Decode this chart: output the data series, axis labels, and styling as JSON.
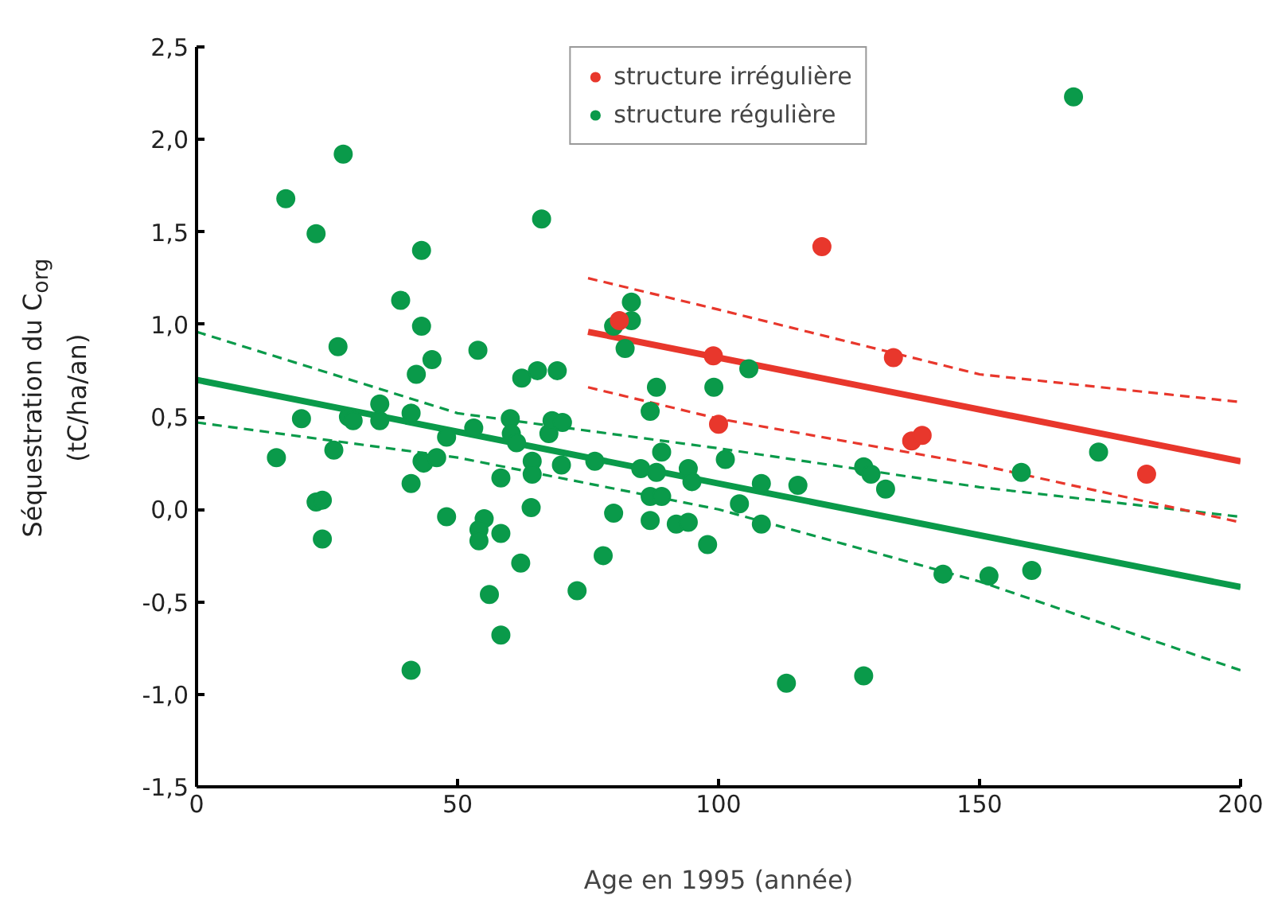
{
  "chart_data": {
    "type": "scatter",
    "xlabel": "Age en 1995 (année)",
    "ylabel": "Séquestration du C$_{org}$\n(tC/ha/an)",
    "xlim": [
      0,
      200
    ],
    "xticks": [
      0,
      50,
      100,
      150,
      200
    ],
    "ylim": [
      -1.5,
      2.5
    ],
    "yticks": [
      {
        "value": -1.5,
        "label": "-1,5"
      },
      {
        "value": -1.0,
        "label": "-1,0"
      },
      {
        "value": -0.5,
        "label": "-0,5"
      },
      {
        "value": 0,
        "label": "0,0"
      },
      {
        "value": 0.5,
        "label": "0,5"
      },
      {
        "value": 1.0,
        "label": "1,0"
      },
      {
        "value": 1.5,
        "label": "1,5"
      },
      {
        "value": 2.0,
        "label": "2,0"
      },
      {
        "value": 2.5,
        "label": "2,5"
      }
    ],
    "grid": false,
    "legend": "top",
    "series": [
      {
        "name": "structure irrégulière",
        "color": "#e8372c",
        "marker": "circle",
        "x": [
          81,
          99,
          100,
          119.8,
          133.5,
          137,
          139,
          182
        ],
        "values": [
          1.02,
          0.83,
          0.46,
          1.42,
          0.82,
          0.37,
          0.4,
          0.19
        ]
      },
      {
        "name": "structure régulière",
        "color": "#0a9a4a",
        "marker": "circle",
        "x": [
          28.1,
          17.1,
          22.9,
          43.1,
          66.1,
          39.1,
          43.1,
          27.1,
          45.1,
          53.9,
          42.1,
          62.3,
          65.3,
          35.1,
          20.1,
          29.1,
          30,
          35.1,
          41.1,
          15.3,
          26.3,
          47.9,
          53.1,
          60.1,
          60.3,
          61.3,
          43.2,
          43.5,
          46,
          64.3,
          64.3,
          41.1,
          58.3,
          64.1,
          47.9,
          55.1,
          54.1,
          54.1,
          58.3,
          22.9,
          24.1,
          24.1,
          62.1,
          56.1,
          58.3,
          41.1,
          69.1,
          67.5,
          68.1,
          70.1,
          69.9,
          76.3,
          79.9,
          77.9,
          72.9,
          79.9,
          83.3,
          83.3,
          82.1,
          88.1,
          86.9,
          89.1,
          85.1,
          88.1,
          94.2,
          94.9,
          86.9,
          89.1,
          86.9,
          91.9,
          94.2,
          97.9,
          99.1,
          101.3,
          104,
          105.8,
          108.2,
          108.2,
          115.2,
          127.8,
          129.2,
          132,
          113,
          127.8,
          168,
          172.8,
          158,
          143,
          151.8,
          160
        ],
        "values": [
          1.92,
          1.68,
          1.49,
          1.4,
          1.57,
          1.13,
          0.99,
          0.88,
          0.81,
          0.86,
          0.73,
          0.71,
          0.75,
          0.57,
          0.49,
          0.5,
          0.48,
          0.48,
          0.52,
          0.28,
          0.32,
          0.39,
          0.44,
          0.49,
          0.41,
          0.36,
          0.26,
          0.25,
          0.28,
          0.26,
          0.19,
          0.14,
          0.17,
          0.01,
          -0.04,
          -0.05,
          -0.11,
          -0.17,
          -0.13,
          0.04,
          0.05,
          -0.16,
          -0.29,
          -0.46,
          -0.68,
          -0.87,
          0.75,
          0.41,
          0.48,
          0.47,
          0.24,
          0.26,
          -0.02,
          -0.25,
          -0.44,
          0.99,
          1.12,
          1.02,
          0.87,
          0.66,
          0.53,
          0.31,
          0.22,
          0.2,
          0.22,
          0.15,
          0.07,
          0.07,
          -0.06,
          -0.08,
          -0.07,
          -0.19,
          0.66,
          0.27,
          0.03,
          0.76,
          0.14,
          -0.08,
          0.13,
          0.23,
          0.19,
          0.11,
          -0.94,
          -0.9,
          2.23,
          0.31,
          0.2,
          -0.35,
          -0.36,
          -0.33
        ]
      },
      {
        "color": "#e8372c",
        "type": "line",
        "line_style": "solid",
        "x": [
          75,
          200
        ],
        "values": [
          0.96,
          0.26
        ]
      },
      {
        "color": "#e8372c",
        "type": "line",
        "line_style": "dashed",
        "x": [
          75,
          100,
          150,
          200
        ],
        "values": [
          1.25,
          1.08,
          0.73,
          0.58
        ]
      },
      {
        "color": "#e8372c",
        "type": "line",
        "line_style": "dashed",
        "x": [
          75,
          100,
          150,
          200
        ],
        "values": [
          0.66,
          0.49,
          0.24,
          -0.07
        ]
      },
      {
        "color": "#0a9a4a",
        "type": "line",
        "line_style": "solid",
        "x": [
          0,
          200
        ],
        "values": [
          0.7,
          -0.42
        ]
      },
      {
        "color": "#0a9a4a",
        "type": "line",
        "line_style": "dashed",
        "x": [
          0,
          50,
          100,
          150,
          200
        ],
        "values": [
          0.96,
          0.52,
          0.33,
          0.12,
          -0.04
        ]
      },
      {
        "color": "#0a9a4a",
        "type": "line",
        "line_style": "dashed",
        "x": [
          0,
          50,
          100,
          150,
          200
        ],
        "values": [
          0.47,
          0.28,
          0.0,
          -0.39,
          -0.87
        ]
      }
    ]
  }
}
